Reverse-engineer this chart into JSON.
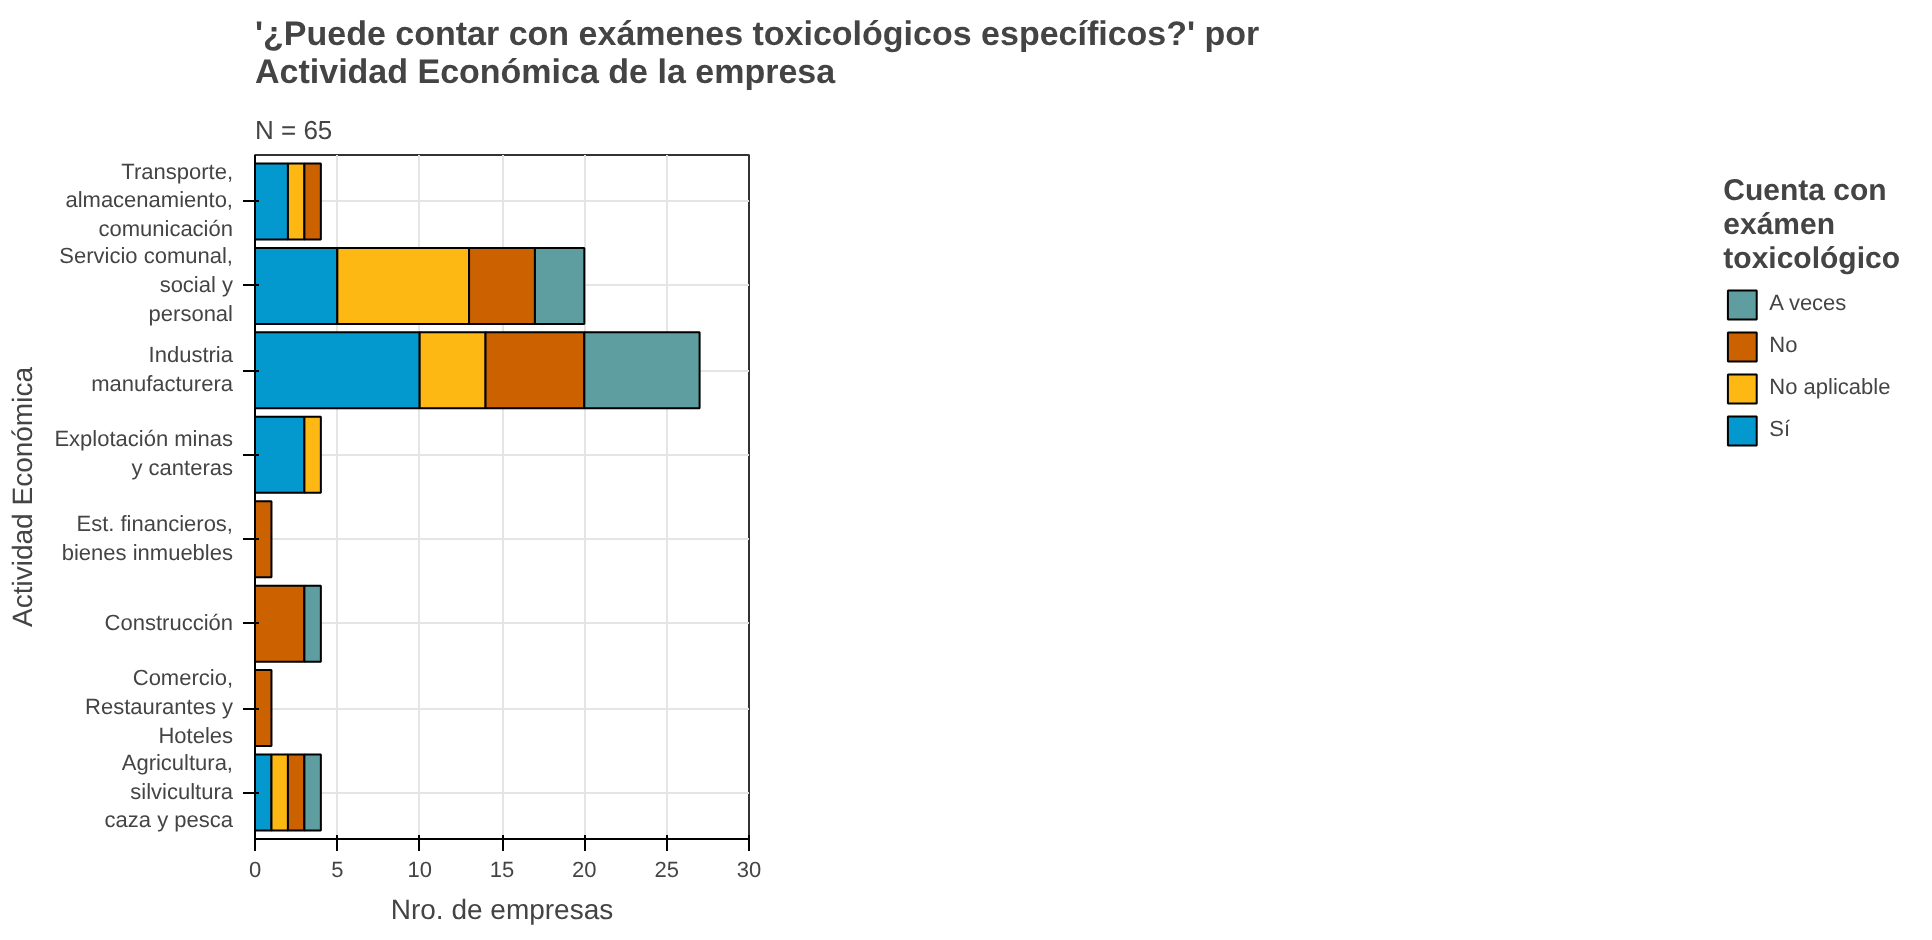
{
  "chart_data": {
    "type": "bar",
    "orientation": "horizontal",
    "stacked": true,
    "title": "'¿Puede contar con exámenes toxicológicos específicos?' por\nActividad Económica de la empresa",
    "subtitle": "N = 65",
    "xlabel": "Nro. de empresas",
    "ylabel": "Actividad Económica",
    "legend_title": "Cuenta con\nexámen\ntoxicológico",
    "categories": [
      "Transporte,\nalmacenamiento,\ncomunicación",
      "Servicio comunal,\nsocial y\npersonal",
      "Industria\nmanufacturera",
      "Explotación minas\ny canteras",
      "Est. financieros,\nbienes inmuebles",
      "Construcción",
      "Comercio,\nRestaurantes y\nHoteles",
      "Agricultura,\nsilvicultura\ncaza y pesca"
    ],
    "series": [
      {
        "name": "Sí",
        "color": "#0399cf",
        "values": [
          2,
          5,
          10,
          3,
          null,
          null,
          null,
          1
        ]
      },
      {
        "name": "No aplicable",
        "color": "#fdb813",
        "values": [
          1,
          8,
          4,
          1,
          null,
          null,
          null,
          1
        ]
      },
      {
        "name": "No",
        "color": "#cc6100",
        "values": [
          1,
          4,
          6,
          null,
          1,
          3,
          1,
          1
        ]
      },
      {
        "name": "A veces",
        "color": "#5f9ea0",
        "values": [
          null,
          3,
          7,
          null,
          null,
          1,
          null,
          1
        ]
      }
    ],
    "xlim": [
      0,
      30
    ],
    "xticks": [
      0,
      5,
      10,
      15,
      20,
      25,
      30
    ],
    "grid": true,
    "legend": "right"
  }
}
